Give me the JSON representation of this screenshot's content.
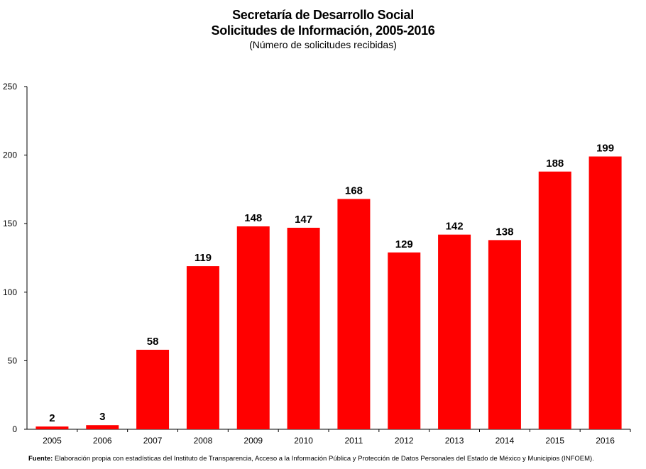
{
  "chart_data": {
    "type": "bar",
    "title": [
      "Secretaría de Desarrollo Social",
      "Solicitudes de Información, 2005-2016"
    ],
    "subtitle": "(Número de solicitudes recibidas)",
    "categories": [
      "2005",
      "2006",
      "2007",
      "2008",
      "2009",
      "2010",
      "2011",
      "2012",
      "2013",
      "2014",
      "2015",
      "2016"
    ],
    "values": [
      2,
      3,
      58,
      119,
      148,
      147,
      168,
      129,
      142,
      138,
      188,
      199
    ],
    "ylim": [
      0,
      250
    ],
    "yticks": [
      0,
      50,
      100,
      150,
      200,
      250
    ],
    "xlabel": "",
    "ylabel": "",
    "grid": false,
    "legend": "none",
    "bar_color": "#ff0000"
  },
  "source": {
    "label": "Fuente:",
    "text": "Elaboración propia con estadísticas del Instituto de Transparencia, Acceso a la Información Pública y Protección de Datos Personales del Estado de México y Municipios (INFOEM)."
  }
}
